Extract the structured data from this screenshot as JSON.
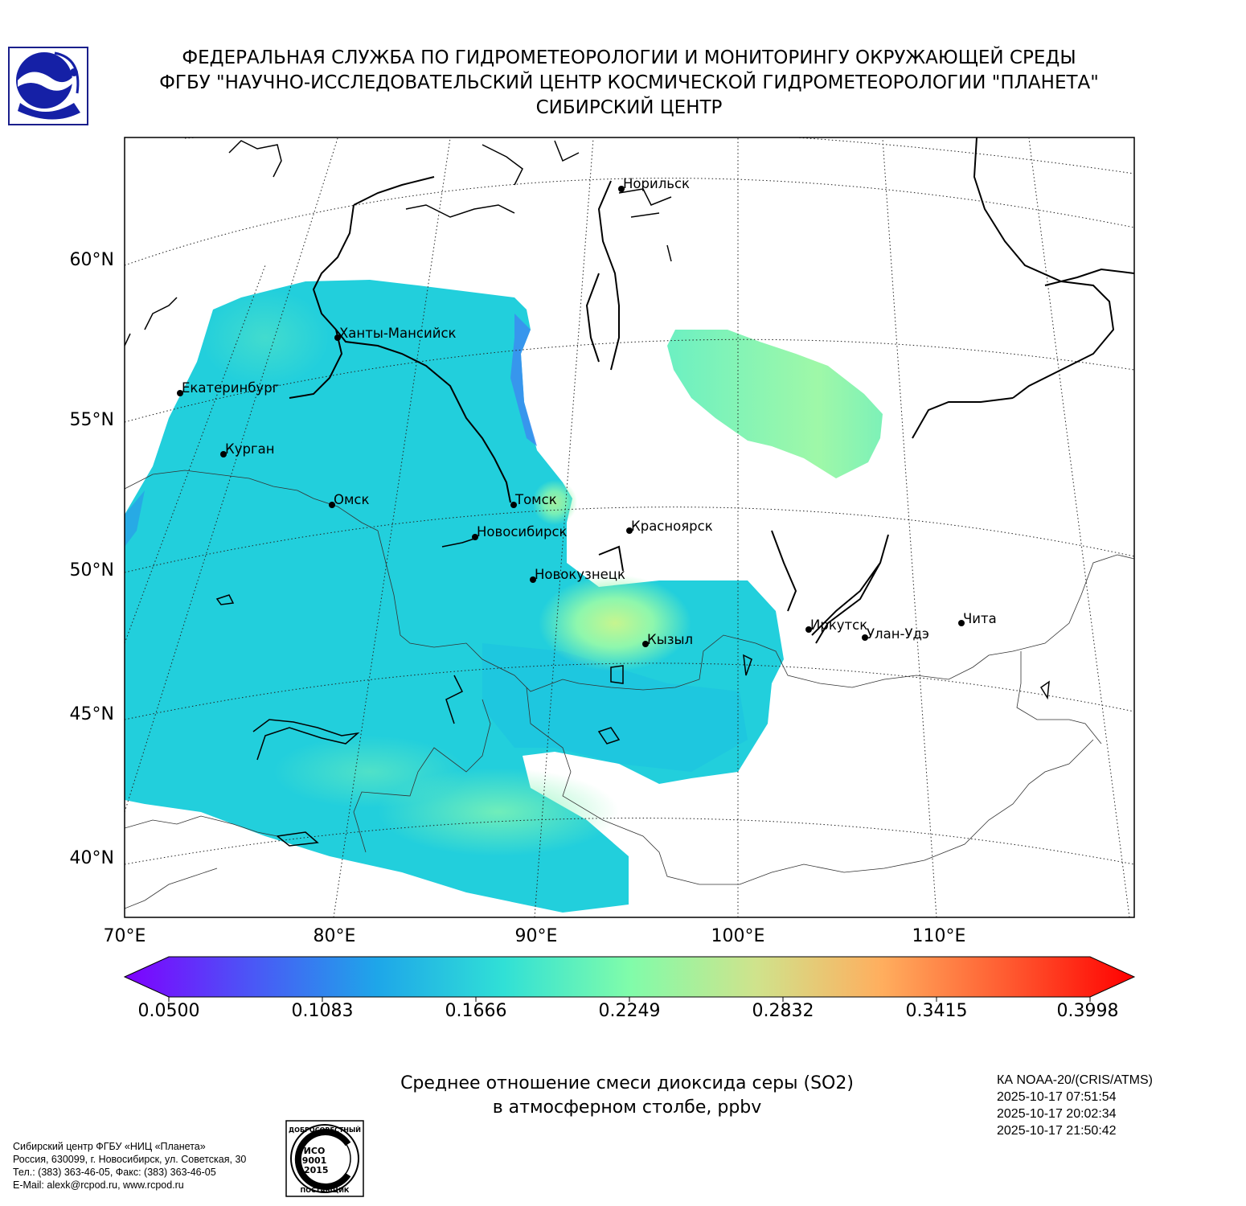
{
  "header": {
    "line1": "ФЕДЕРАЛЬНАЯ СЛУЖБА ПО ГИДРОМЕТЕОРОЛОГИИ И МОНИТОРИНГУ ОКРУЖАЮЩЕЙ СРЕДЫ",
    "line2": "ФГБУ \"НАУЧНО-ИССЛЕДОВАТЕЛЬСКИЙ ЦЕНТР КОСМИЧЕСКОЙ ГИДРОМЕТЕОРОЛОГИИ \"ПЛАНЕТА\"",
    "line3": "СИБИРСКИЙ ЦЕНТР"
  },
  "logo_icon": "planeta-logo-icon",
  "map": {
    "lat_labels": [
      "60°N",
      "55°N",
      "50°N",
      "45°N",
      "40°N"
    ],
    "lon_labels": [
      "70°E",
      "80°E",
      "90°E",
      "100°E",
      "110°E"
    ],
    "cities": [
      {
        "name": "Норильск"
      },
      {
        "name": "Ханты-Мансийск"
      },
      {
        "name": "Екатеринбург"
      },
      {
        "name": "Курган"
      },
      {
        "name": "Омск"
      },
      {
        "name": "Томск"
      },
      {
        "name": "Новосибирск"
      },
      {
        "name": "Красноярск"
      },
      {
        "name": "Новокузнецк"
      },
      {
        "name": "Кызыл"
      },
      {
        "name": "Иркутск"
      },
      {
        "name": "Улан-Удэ"
      },
      {
        "name": "Чита"
      }
    ]
  },
  "colorbar": {
    "ticks": [
      "0.0500",
      "0.1083",
      "0.1666",
      "0.2249",
      "0.2832",
      "0.3415",
      "0.3998"
    ],
    "colors": [
      "#7f00ff",
      "#4a5ef6",
      "#1aa9e8",
      "#35e6d2",
      "#87fca7",
      "#d6db8c",
      "#ff9a55",
      "#ff4d26",
      "#ff0000"
    ]
  },
  "caption": {
    "line1": "Среднее отношение смеси диоксида серы (SO2)",
    "line2": "в атмосферном столбе, ppbv"
  },
  "satellite": {
    "name": "КА NOAA-20/(CRIS/ATMS)",
    "times": [
      "2025-10-17 07:51:54",
      "2025-10-17 20:02:34",
      "2025-10-17 21:50:42"
    ]
  },
  "footer": {
    "org": "Сибирский центр ФГБУ «НИЦ «Планета»",
    "address": "Россия, 630099, г. Новосибирск, ул. Советская, 30",
    "phone": "Тел.: (383) 363-46-05, Факс: (383) 363-46-05",
    "email": "E-Mail: alexk@rcpod.ru, www.rcpod.ru"
  },
  "iso_badge": {
    "top_text": "ДОБРОСОВЕСТНЫЙ",
    "line1": "ИСО",
    "line2": "9001",
    "line3": "-2015",
    "bottom_text": "ПОСТАВЩИК"
  }
}
